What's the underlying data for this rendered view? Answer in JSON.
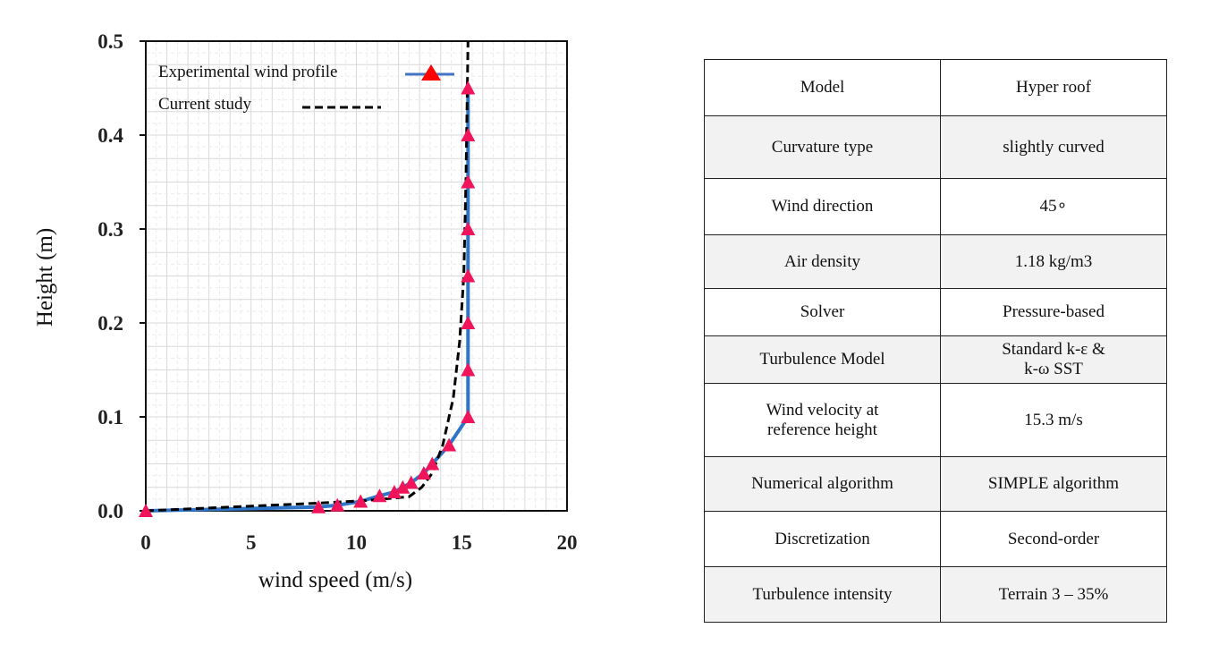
{
  "chart_data": {
    "type": "line",
    "xlabel": "wind speed (m/s)",
    "ylabel": "Height (m)",
    "xlim": [
      0,
      20
    ],
    "ylim": [
      0,
      0.5
    ],
    "xticks": [
      "0",
      "5",
      "10",
      "15",
      "20"
    ],
    "yticks": [
      "0.0",
      "0.1",
      "0.2",
      "0.3",
      "0.4",
      "0.5"
    ],
    "grid": true,
    "legend_position": "top-left",
    "series": [
      {
        "name": "Experimental wind profile",
        "style": "solid line with triangle markers",
        "line_color": "#2e75c8",
        "marker_color": "#f0145a",
        "x": [
          0,
          8.2,
          9.1,
          10.2,
          11.1,
          11.8,
          12.2,
          12.6,
          13.2,
          13.6,
          14.4,
          15.3,
          15.3,
          15.3,
          15.3,
          15.3,
          15.3,
          15.3,
          15.3
        ],
        "y": [
          0,
          0.004,
          0.006,
          0.01,
          0.016,
          0.02,
          0.025,
          0.03,
          0.04,
          0.05,
          0.07,
          0.1,
          0.15,
          0.2,
          0.25,
          0.3,
          0.35,
          0.4,
          0.45
        ]
      },
      {
        "name": "Current study",
        "style": "dashed",
        "line_color": "#000000",
        "x": [
          0,
          4,
          8,
          10.5,
          12.5,
          13.1,
          13.6,
          14.1,
          14.6,
          14.9,
          15.1,
          15.2,
          15.3
        ],
        "y": [
          0,
          0.004,
          0.008,
          0.011,
          0.015,
          0.025,
          0.04,
          0.07,
          0.12,
          0.18,
          0.25,
          0.35,
          0.5
        ]
      }
    ]
  },
  "table": {
    "rows": [
      [
        "Model",
        "Hyper roof"
      ],
      [
        "Curvature type",
        "slightly curved"
      ],
      [
        "Wind direction",
        "45∘"
      ],
      [
        "Air density",
        "1.18 kg/m3"
      ],
      [
        "Solver",
        "Pressure-based"
      ],
      [
        "Turbulence Model",
        "Standard k-ε &\nk-ω SST"
      ],
      [
        "Wind velocity at\nreference height",
        "15.3 m/s"
      ],
      [
        "Numerical algorithm",
        "SIMPLE algorithm"
      ],
      [
        "Discretization",
        "Second-order"
      ],
      [
        "Turbulence intensity",
        "Terrain 3 – 35%"
      ]
    ]
  }
}
